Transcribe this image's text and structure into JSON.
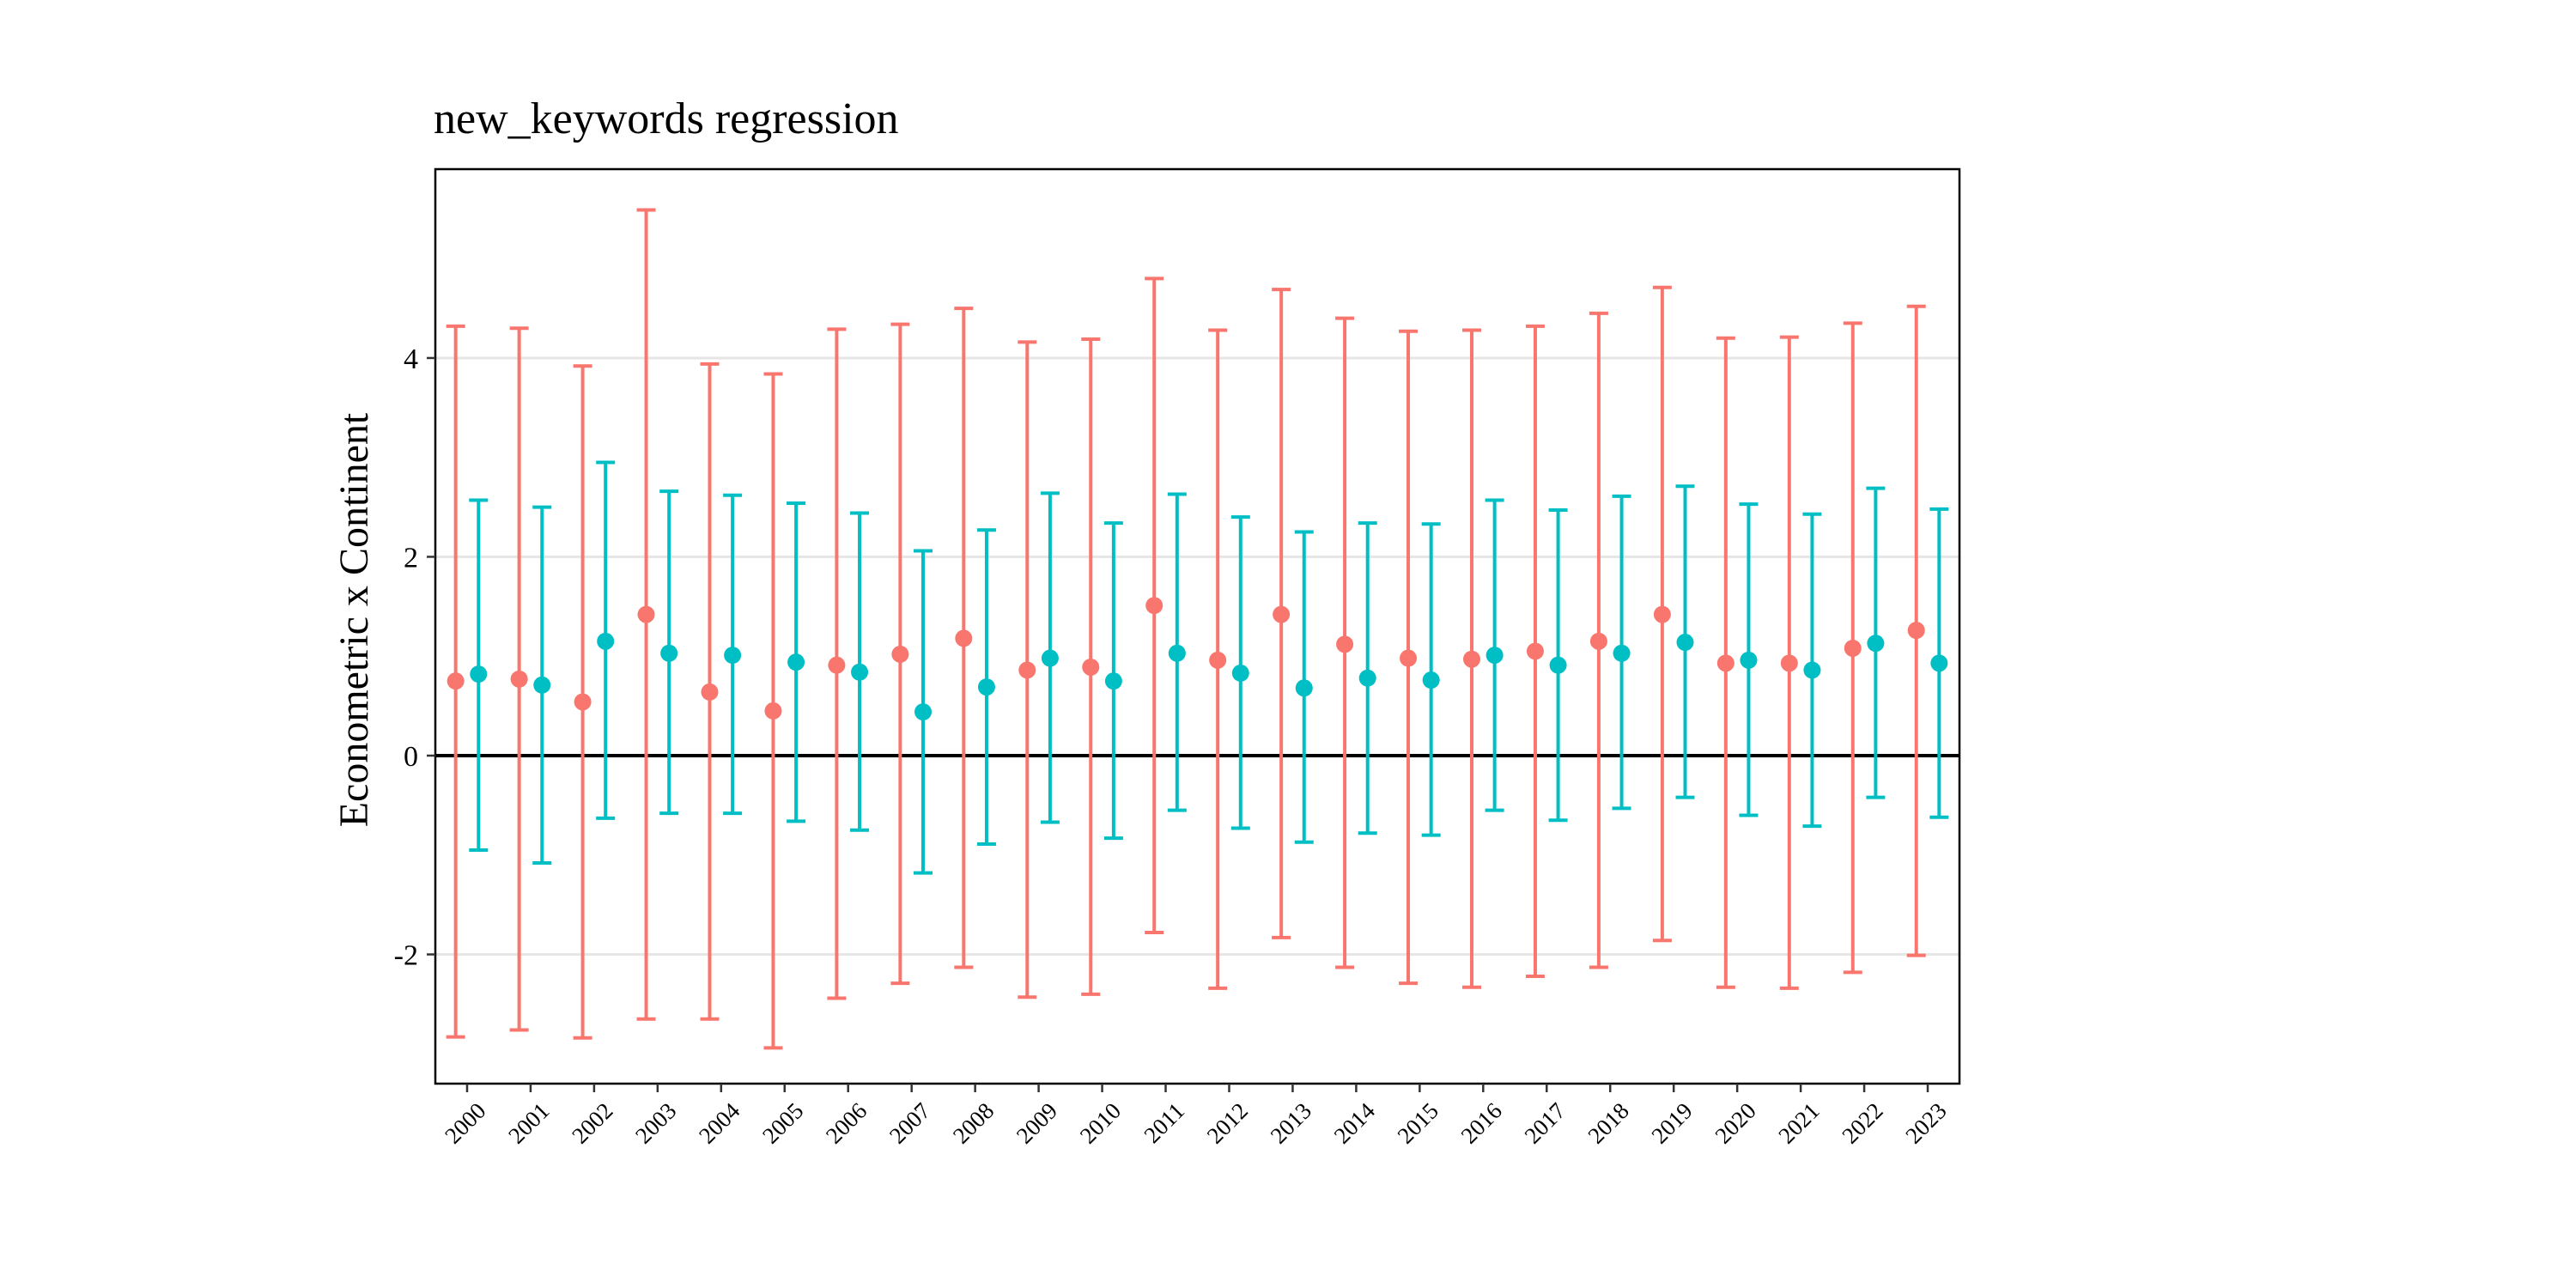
{
  "chart_data": {
    "type": "scatter",
    "subtype": "point-errorbar",
    "title": "new_keywords regression",
    "xlabel": "",
    "ylabel": "Econometric x Continent",
    "ylim": [
      -3.3,
      5.9
    ],
    "yticks": [
      -2,
      0,
      2,
      4
    ],
    "grid": "horizontal-major",
    "legend": "none",
    "reference_line": 0,
    "categories": [
      "2000",
      "2001",
      "2002",
      "2003",
      "2004",
      "2005",
      "2006",
      "2007",
      "2008",
      "2009",
      "2010",
      "2011",
      "2012",
      "2013",
      "2014",
      "2015",
      "2016",
      "2017",
      "2018",
      "2019",
      "2020",
      "2021",
      "2022",
      "2023"
    ],
    "series": [
      {
        "color": "#F8766D",
        "estimate": [
          0.75,
          0.77,
          0.54,
          1.42,
          0.64,
          0.45,
          0.91,
          1.02,
          1.18,
          0.86,
          0.89,
          1.51,
          0.96,
          1.42,
          1.12,
          0.98,
          0.97,
          1.05,
          1.15,
          1.42,
          0.93,
          0.93,
          1.08,
          1.26
        ],
        "lower": [
          -2.83,
          -2.76,
          -2.84,
          -2.65,
          -2.65,
          -2.94,
          -2.44,
          -2.29,
          -2.13,
          -2.43,
          -2.4,
          -1.78,
          -2.34,
          -1.83,
          -2.13,
          -2.29,
          -2.33,
          -2.22,
          -2.13,
          -1.86,
          -2.33,
          -2.34,
          -2.18,
          -2.01
        ],
        "upper": [
          4.32,
          4.3,
          3.92,
          5.49,
          3.94,
          3.84,
          4.29,
          4.34,
          4.5,
          4.16,
          4.19,
          4.8,
          4.28,
          4.69,
          4.4,
          4.27,
          4.28,
          4.32,
          4.45,
          4.71,
          4.2,
          4.21,
          4.35,
          4.52
        ]
      },
      {
        "color": "#00BFC4",
        "estimate": [
          0.82,
          0.71,
          1.15,
          1.03,
          1.01,
          0.94,
          0.84,
          0.44,
          0.69,
          0.98,
          0.75,
          1.03,
          0.83,
          0.68,
          0.78,
          0.76,
          1.01,
          0.91,
          1.03,
          1.14,
          0.96,
          0.86,
          1.13,
          0.93
        ],
        "lower": [
          -0.95,
          -1.08,
          -0.63,
          -0.58,
          -0.58,
          -0.66,
          -0.75,
          -1.18,
          -0.89,
          -0.67,
          -0.83,
          -0.55,
          -0.73,
          -0.87,
          -0.78,
          -0.8,
          -0.55,
          -0.65,
          -0.53,
          -0.42,
          -0.6,
          -0.71,
          -0.42,
          -0.62
        ],
        "upper": [
          2.57,
          2.5,
          2.95,
          2.66,
          2.62,
          2.54,
          2.44,
          2.06,
          2.27,
          2.64,
          2.34,
          2.63,
          2.4,
          2.25,
          2.34,
          2.33,
          2.57,
          2.47,
          2.61,
          2.71,
          2.53,
          2.43,
          2.69,
          2.48
        ]
      }
    ]
  }
}
